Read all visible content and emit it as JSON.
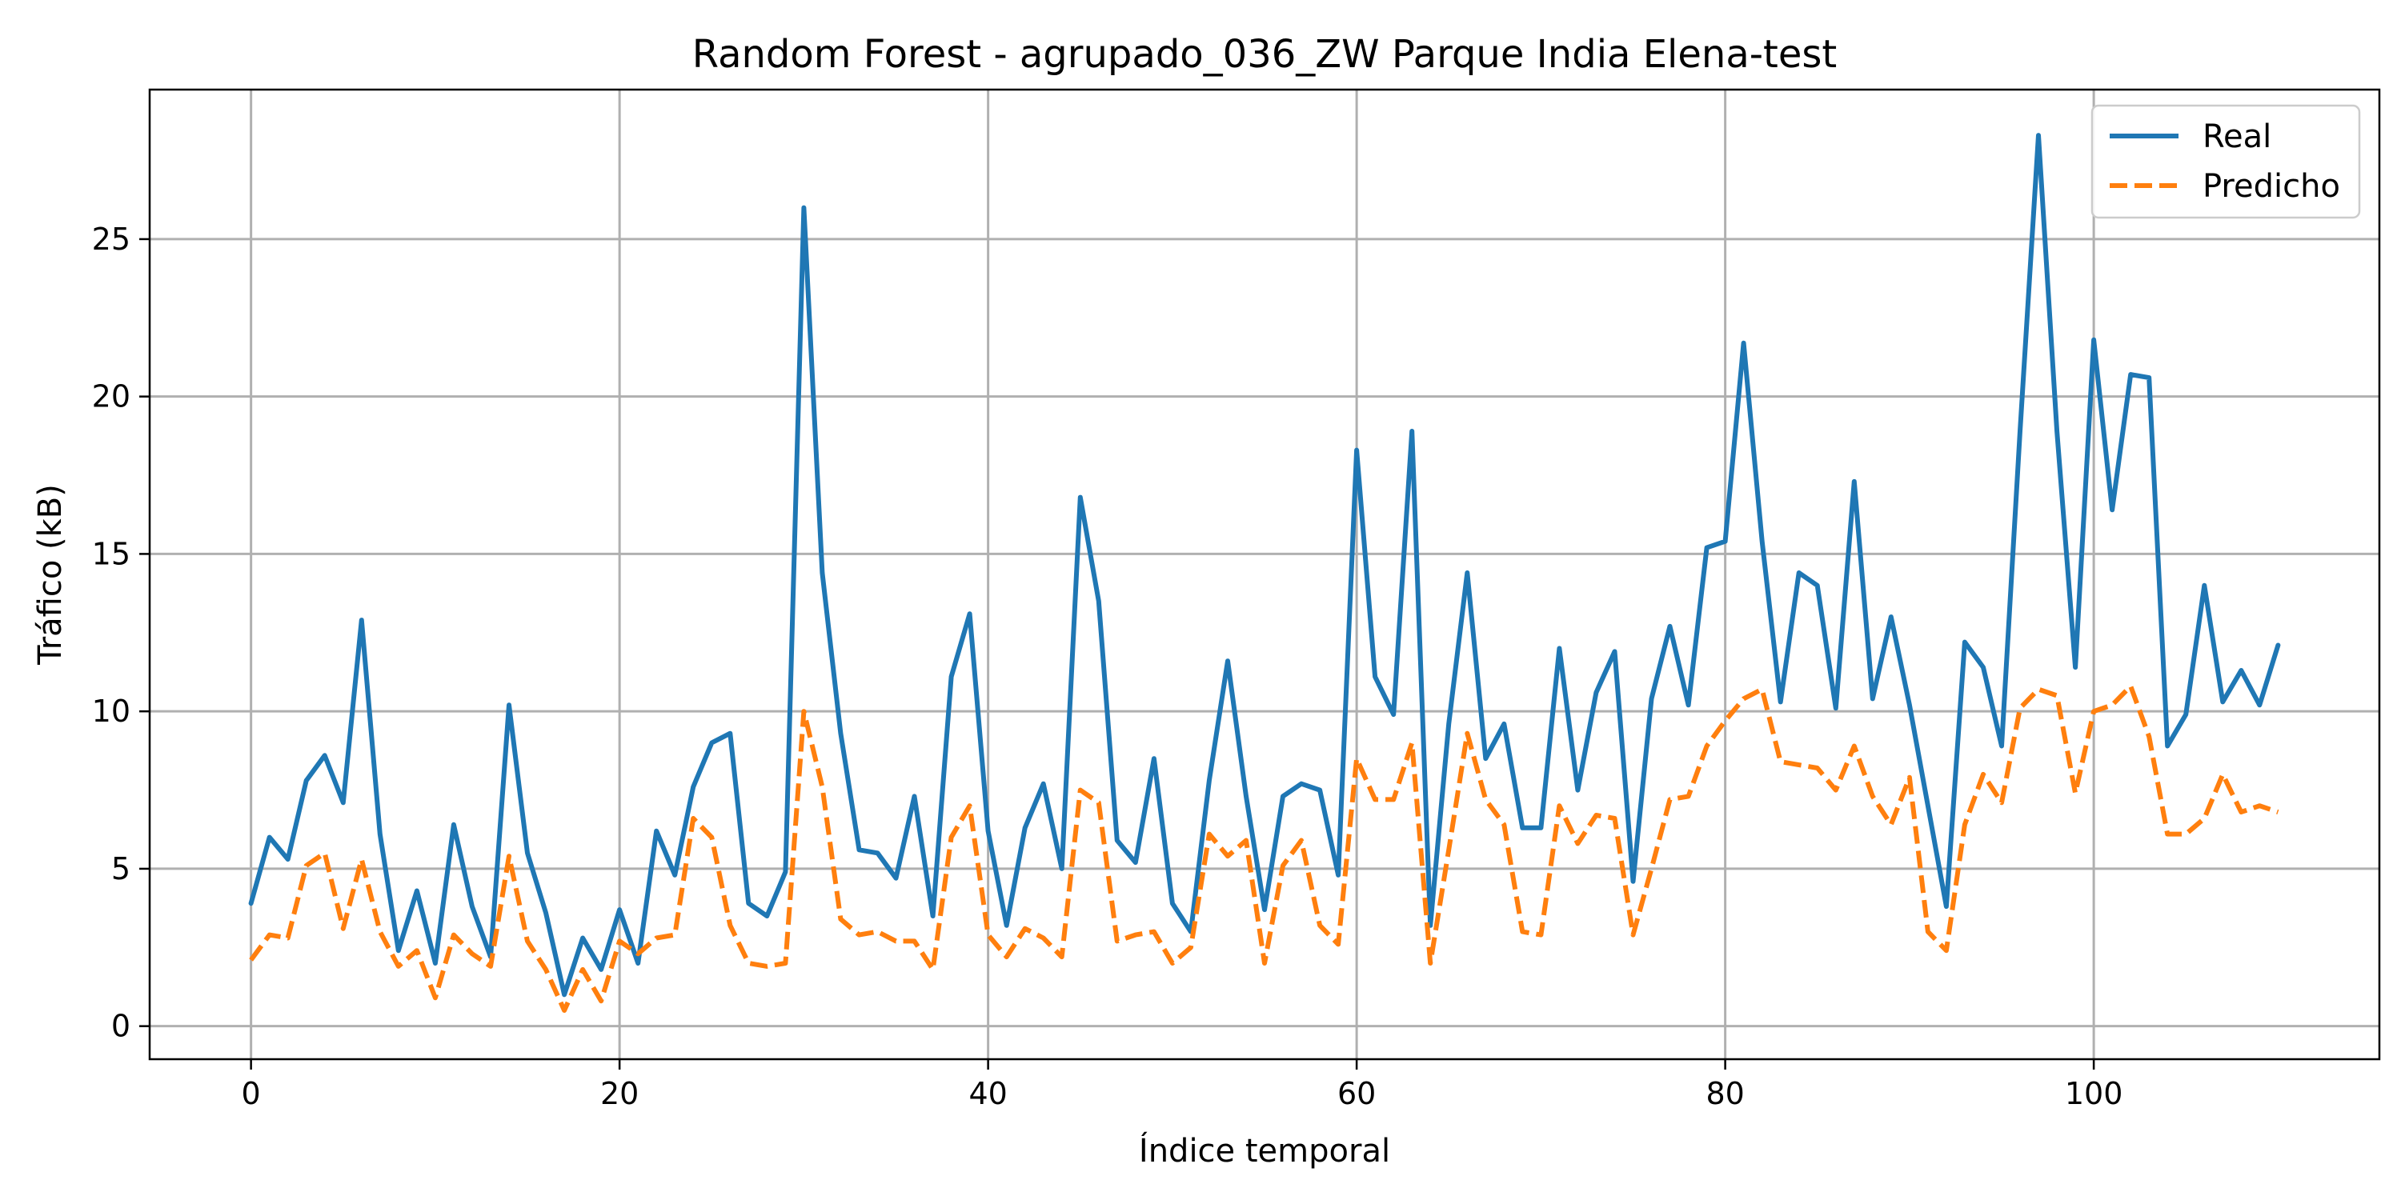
{
  "chart_data": {
    "type": "line",
    "title": "Random Forest - agrupado_036_ZW Parque India Elena-test",
    "xlabel": "Índice temporal",
    "ylabel": "Tráfico (kB)",
    "xlim": [
      -5.5,
      115.5
    ],
    "ylim": [
      -1.05,
      29.75
    ],
    "xticks": [
      0,
      20,
      40,
      60,
      80,
      100
    ],
    "yticks": [
      0,
      5,
      10,
      15,
      20,
      25
    ],
    "grid": true,
    "legend": {
      "position": "top-right",
      "entries": [
        "Real",
        "Predicho"
      ]
    },
    "series": [
      {
        "name": "Real",
        "color": "#1f77b4",
        "style": "solid",
        "values": [
          3.9,
          6.0,
          5.3,
          7.8,
          8.6,
          7.1,
          12.9,
          6.1,
          2.4,
          4.3,
          2.0,
          6.4,
          3.8,
          2.2,
          10.2,
          5.5,
          3.6,
          1.0,
          2.8,
          1.8,
          3.7,
          2.0,
          6.2,
          4.8,
          7.6,
          9.0,
          9.3,
          3.9,
          3.5,
          4.9,
          26.0,
          14.4,
          9.3,
          5.6,
          5.5,
          4.7,
          7.3,
          3.5,
          11.1,
          13.1,
          6.2,
          3.2,
          6.3,
          7.7,
          5.0,
          16.8,
          13.5,
          5.9,
          5.2,
          8.5,
          3.9,
          3.0,
          7.8,
          11.6,
          7.3,
          3.7,
          7.3,
          7.7,
          7.5,
          4.8,
          18.3,
          11.1,
          9.9,
          18.9,
          3.2,
          9.6,
          14.4,
          8.5,
          9.6,
          6.3,
          6.3,
          12.0,
          7.5,
          10.6,
          11.9,
          4.6,
          10.4,
          12.7,
          10.2,
          15.2,
          15.4,
          21.7,
          15.4,
          10.3,
          14.4,
          14.0,
          10.1,
          17.3,
          10.4,
          13.0,
          10.2,
          7.0,
          3.8,
          12.2,
          11.4,
          8.9,
          18.9,
          28.3,
          18.9,
          11.4,
          21.8,
          16.4,
          20.7,
          20.6,
          8.9,
          9.9,
          14.0,
          10.3,
          11.3,
          10.2,
          12.1
        ]
      },
      {
        "name": "Predicho",
        "color": "#ff7f0e",
        "style": "dashed",
        "values": [
          2.1,
          2.9,
          2.8,
          5.1,
          5.5,
          3.1,
          5.3,
          3.0,
          1.9,
          2.4,
          0.9,
          2.9,
          2.3,
          1.9,
          5.4,
          2.7,
          1.8,
          0.5,
          1.8,
          0.8,
          2.7,
          2.3,
          2.8,
          2.9,
          6.6,
          6.0,
          3.2,
          2.0,
          1.9,
          2.0,
          10.0,
          7.6,
          3.4,
          2.9,
          3.0,
          2.7,
          2.7,
          1.8,
          6.0,
          7.0,
          2.9,
          2.2,
          3.1,
          2.8,
          2.2,
          7.5,
          7.1,
          2.7,
          2.9,
          3.0,
          2.0,
          2.5,
          6.1,
          5.4,
          5.9,
          2.0,
          5.1,
          5.9,
          3.2,
          2.6,
          8.5,
          7.2,
          7.2,
          9.0,
          2.0,
          5.6,
          9.3,
          7.2,
          6.4,
          3.0,
          2.9,
          7.0,
          5.8,
          6.7,
          6.6,
          2.9,
          5.0,
          7.2,
          7.3,
          8.9,
          9.7,
          10.4,
          10.7,
          8.4,
          8.3,
          8.2,
          7.5,
          8.9,
          7.3,
          6.4,
          7.9,
          3.0,
          2.4,
          6.4,
          8.0,
          7.1,
          10.1,
          10.7,
          10.5,
          7.4,
          10.0,
          10.2,
          10.8,
          9.2,
          6.1,
          6.1,
          6.6,
          8.0,
          6.8,
          7.0,
          6.8
        ]
      }
    ]
  }
}
